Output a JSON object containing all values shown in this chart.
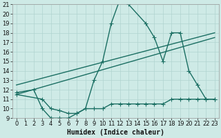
{
  "title": "",
  "xlabel": "Humidex (Indice chaleur)",
  "ylabel": "",
  "bg_color": "#ceeae6",
  "grid_color": "#b0d4d0",
  "line_color": "#1a6e62",
  "xlim": [
    -0.5,
    23.5
  ],
  "ylim": [
    9,
    21
  ],
  "xticks": [
    0,
    1,
    2,
    3,
    4,
    5,
    6,
    7,
    8,
    9,
    10,
    11,
    12,
    13,
    14,
    15,
    16,
    17,
    18,
    19,
    20,
    21,
    22,
    23
  ],
  "yticks": [
    9,
    10,
    11,
    12,
    13,
    14,
    15,
    16,
    17,
    18,
    19,
    20,
    21
  ],
  "line1_x": [
    0,
    2,
    3,
    4,
    5,
    6,
    7,
    8,
    9,
    10,
    11,
    12,
    13,
    15,
    16,
    17,
    18,
    19,
    20,
    21,
    22,
    23
  ],
  "line1_y": [
    11.7,
    12.0,
    10.0,
    9.0,
    9.0,
    9.0,
    9.5,
    10.0,
    13.0,
    15.0,
    19.0,
    21.5,
    21.0,
    19.0,
    17.5,
    15.0,
    18.0,
    18.0,
    14.0,
    12.5,
    11.0,
    11.0
  ],
  "line2_x": [
    0,
    23
  ],
  "line2_y": [
    11.5,
    17.5
  ],
  "line3_x": [
    0,
    23
  ],
  "line3_y": [
    12.5,
    18.0
  ],
  "line4_x": [
    0,
    3,
    4,
    5,
    6,
    7,
    8,
    9,
    10,
    11,
    12,
    13,
    14,
    15,
    16,
    17,
    18,
    19,
    20,
    21,
    22,
    23
  ],
  "line4_y": [
    11.5,
    11.0,
    10.0,
    9.8,
    9.5,
    9.5,
    10.0,
    10.0,
    10.0,
    10.5,
    10.5,
    10.5,
    10.5,
    10.5,
    10.5,
    10.5,
    11.0,
    11.0,
    11.0,
    11.0,
    11.0,
    11.0
  ],
  "marker_size": 2.5,
  "line_width": 1.0,
  "font_size": 6,
  "xlabel_fontsize": 7
}
